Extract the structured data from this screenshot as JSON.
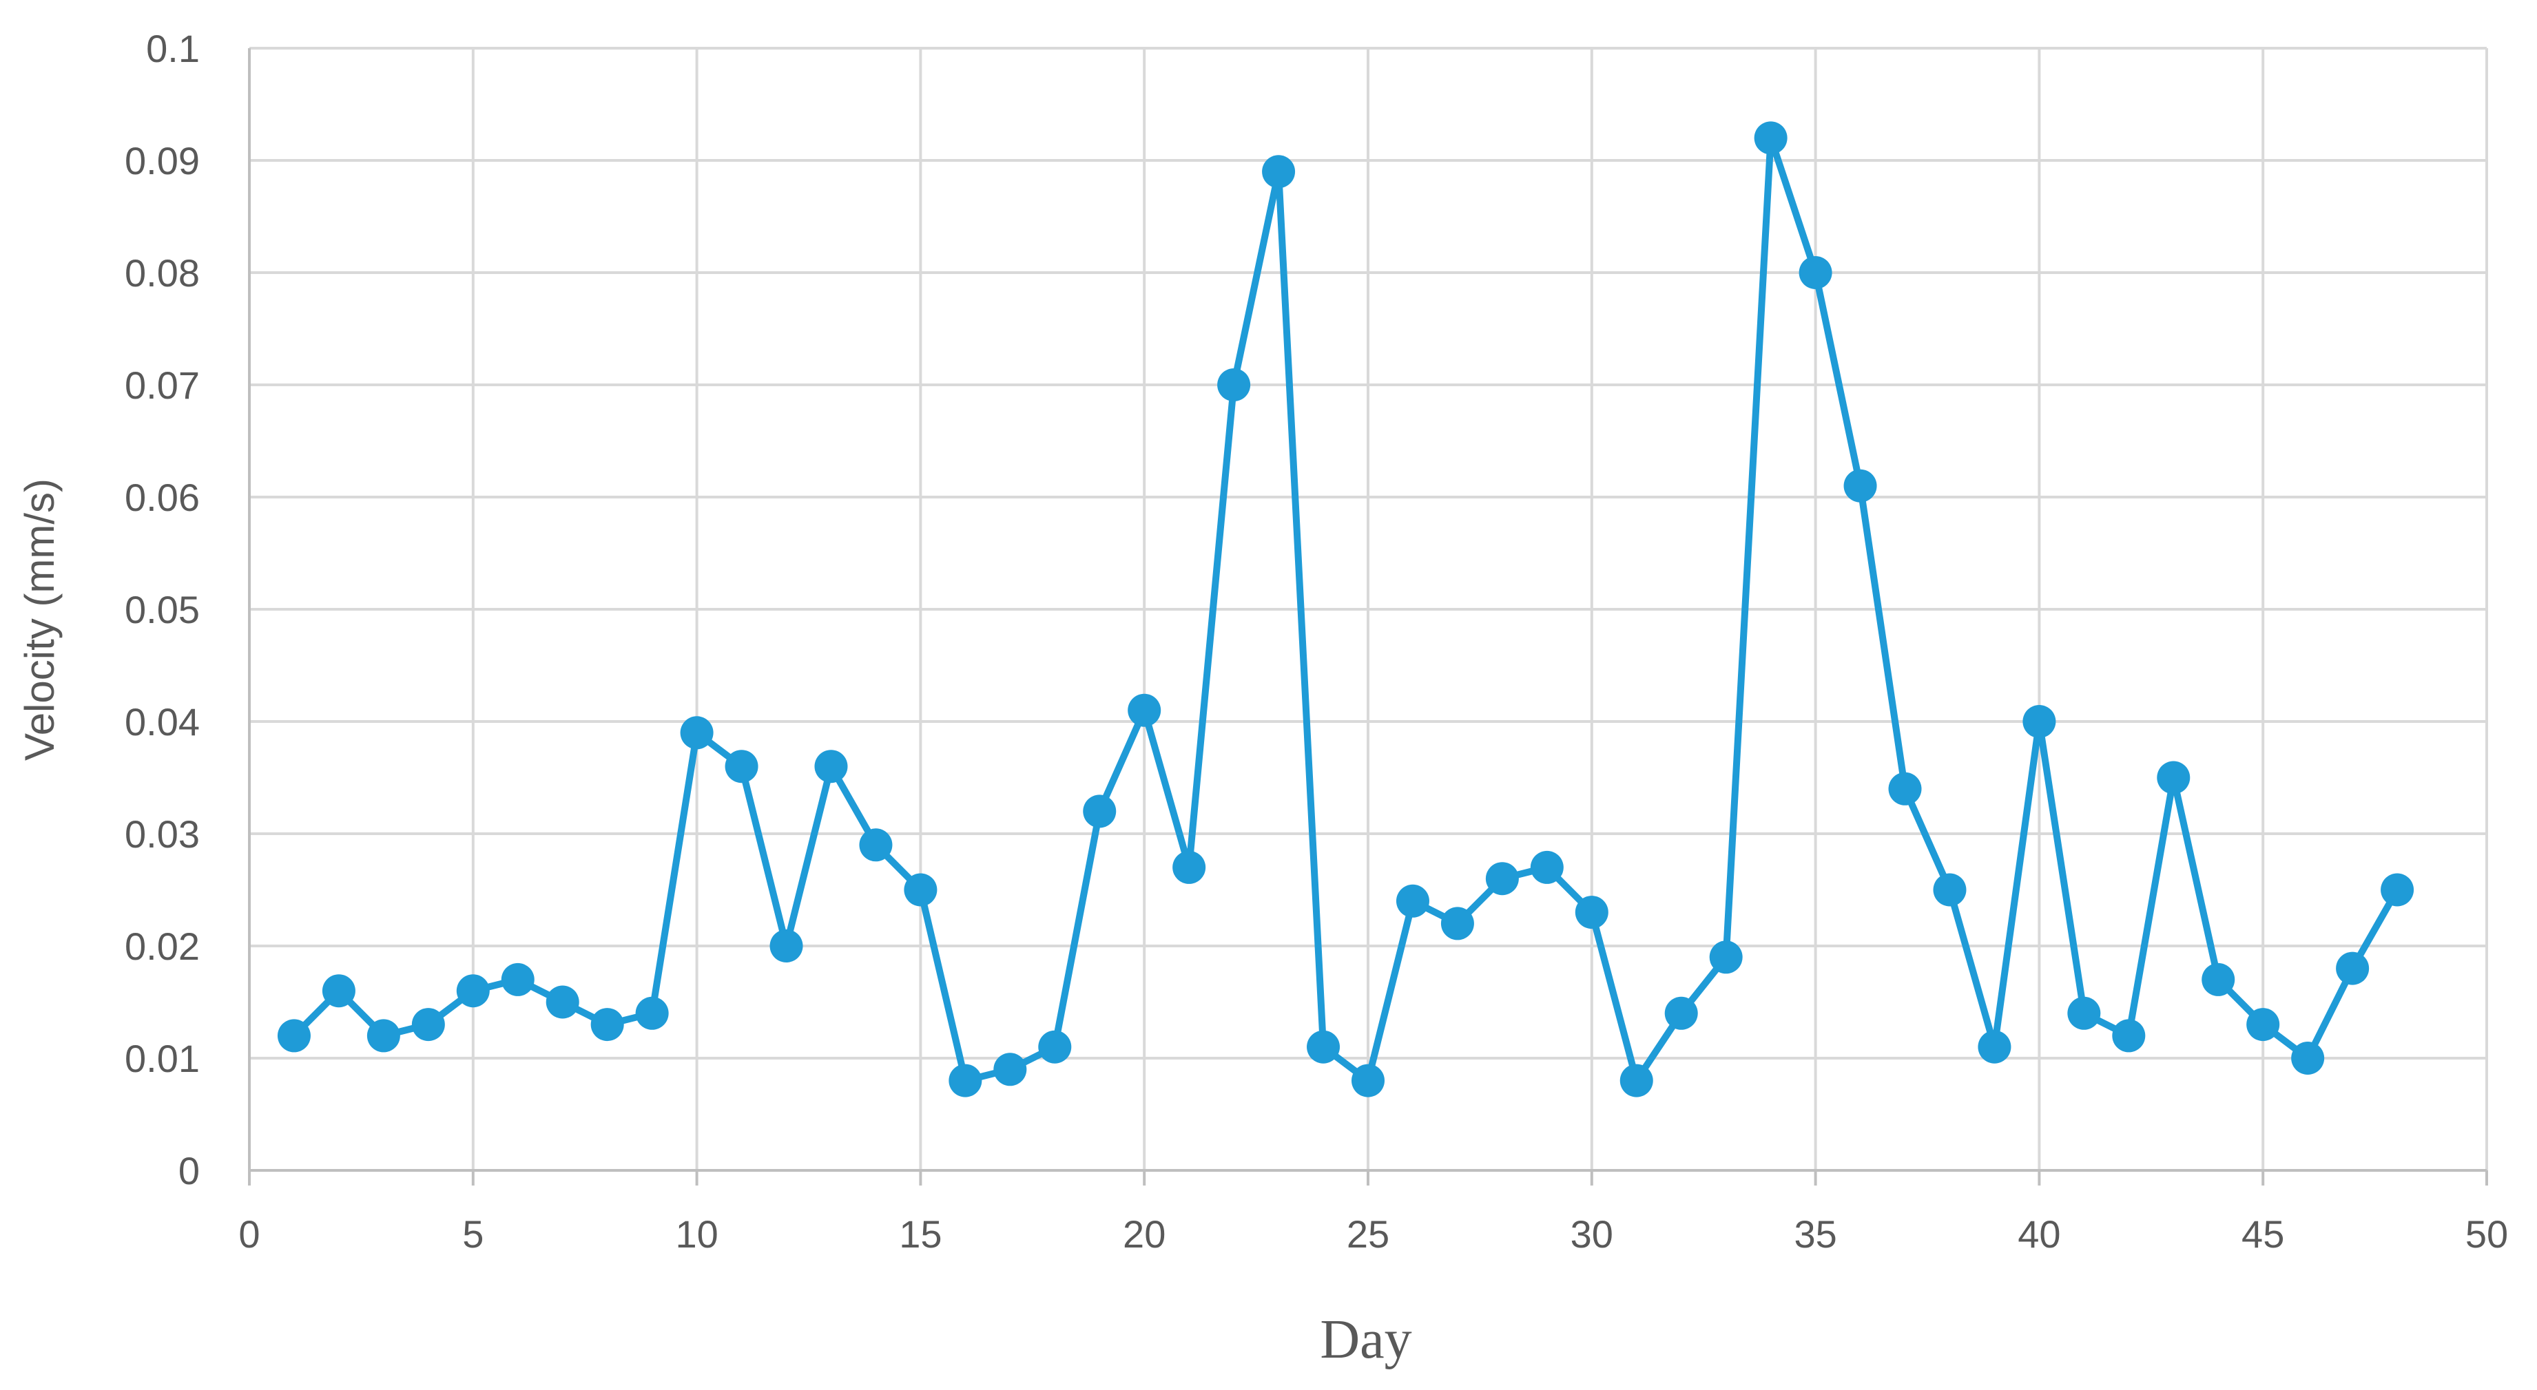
{
  "chart_data": {
    "type": "line",
    "title": "",
    "xlabel": "Day",
    "ylabel": "Velocity (mm/s)",
    "xlim": [
      0,
      50
    ],
    "ylim": [
      0,
      0.1
    ],
    "x_ticks": [
      "0",
      "5",
      "10",
      "15",
      "20",
      "25",
      "30",
      "35",
      "40",
      "45",
      "50"
    ],
    "y_ticks": [
      "0",
      "0.01",
      "0.02",
      "0.03",
      "0.04",
      "0.05",
      "0.06",
      "0.07",
      "0.08",
      "0.09",
      "0.1"
    ],
    "grid": true,
    "legend": "none",
    "series": [
      {
        "color": "#1f9bd7",
        "marker": "circle",
        "x": [
          1,
          2,
          3,
          4,
          5,
          6,
          7,
          8,
          9,
          10,
          11,
          12,
          13,
          14,
          15,
          16,
          17,
          18,
          19,
          20,
          21,
          22,
          23,
          24,
          25,
          26,
          27,
          28,
          29,
          30,
          31,
          32,
          33,
          34,
          35,
          36,
          37,
          38,
          39,
          40,
          41,
          42,
          43,
          44,
          45,
          46,
          47,
          48
        ],
        "y": [
          0.012,
          0.016,
          0.012,
          0.013,
          0.016,
          0.017,
          0.015,
          0.013,
          0.014,
          0.039,
          0.036,
          0.02,
          0.036,
          0.029,
          0.025,
          0.008,
          0.009,
          0.011,
          0.032,
          0.041,
          0.027,
          0.07,
          0.089,
          0.011,
          0.008,
          0.024,
          0.022,
          0.026,
          0.027,
          0.023,
          0.008,
          0.014,
          0.019,
          0.092,
          0.08,
          0.061,
          0.034,
          0.025,
          0.011,
          0.04,
          0.014,
          0.012,
          0.035,
          0.017,
          0.013,
          0.01,
          0.018,
          0.025
        ]
      }
    ]
  }
}
